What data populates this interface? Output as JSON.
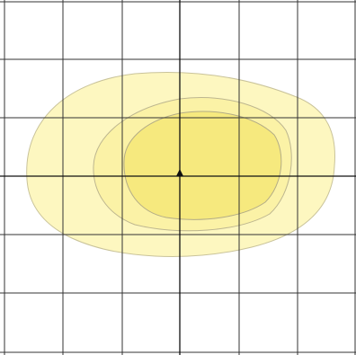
{
  "diagram": {
    "background_color": "#ffffff",
    "grid": {
      "line_color": "#333333",
      "columns": 6,
      "rows": 6
    },
    "axes": {
      "line_color": "#111111",
      "origin_marker": "black-triangle"
    },
    "regions": [
      {
        "name": "outer",
        "fill": "#fdf7c0",
        "stroke": "#c9c39a"
      },
      {
        "name": "middle",
        "fill": "#fbf2a6",
        "stroke": "#bdb68f"
      },
      {
        "name": "inner",
        "fill": "#f6e97e",
        "stroke": "#b3ac86"
      }
    ]
  }
}
